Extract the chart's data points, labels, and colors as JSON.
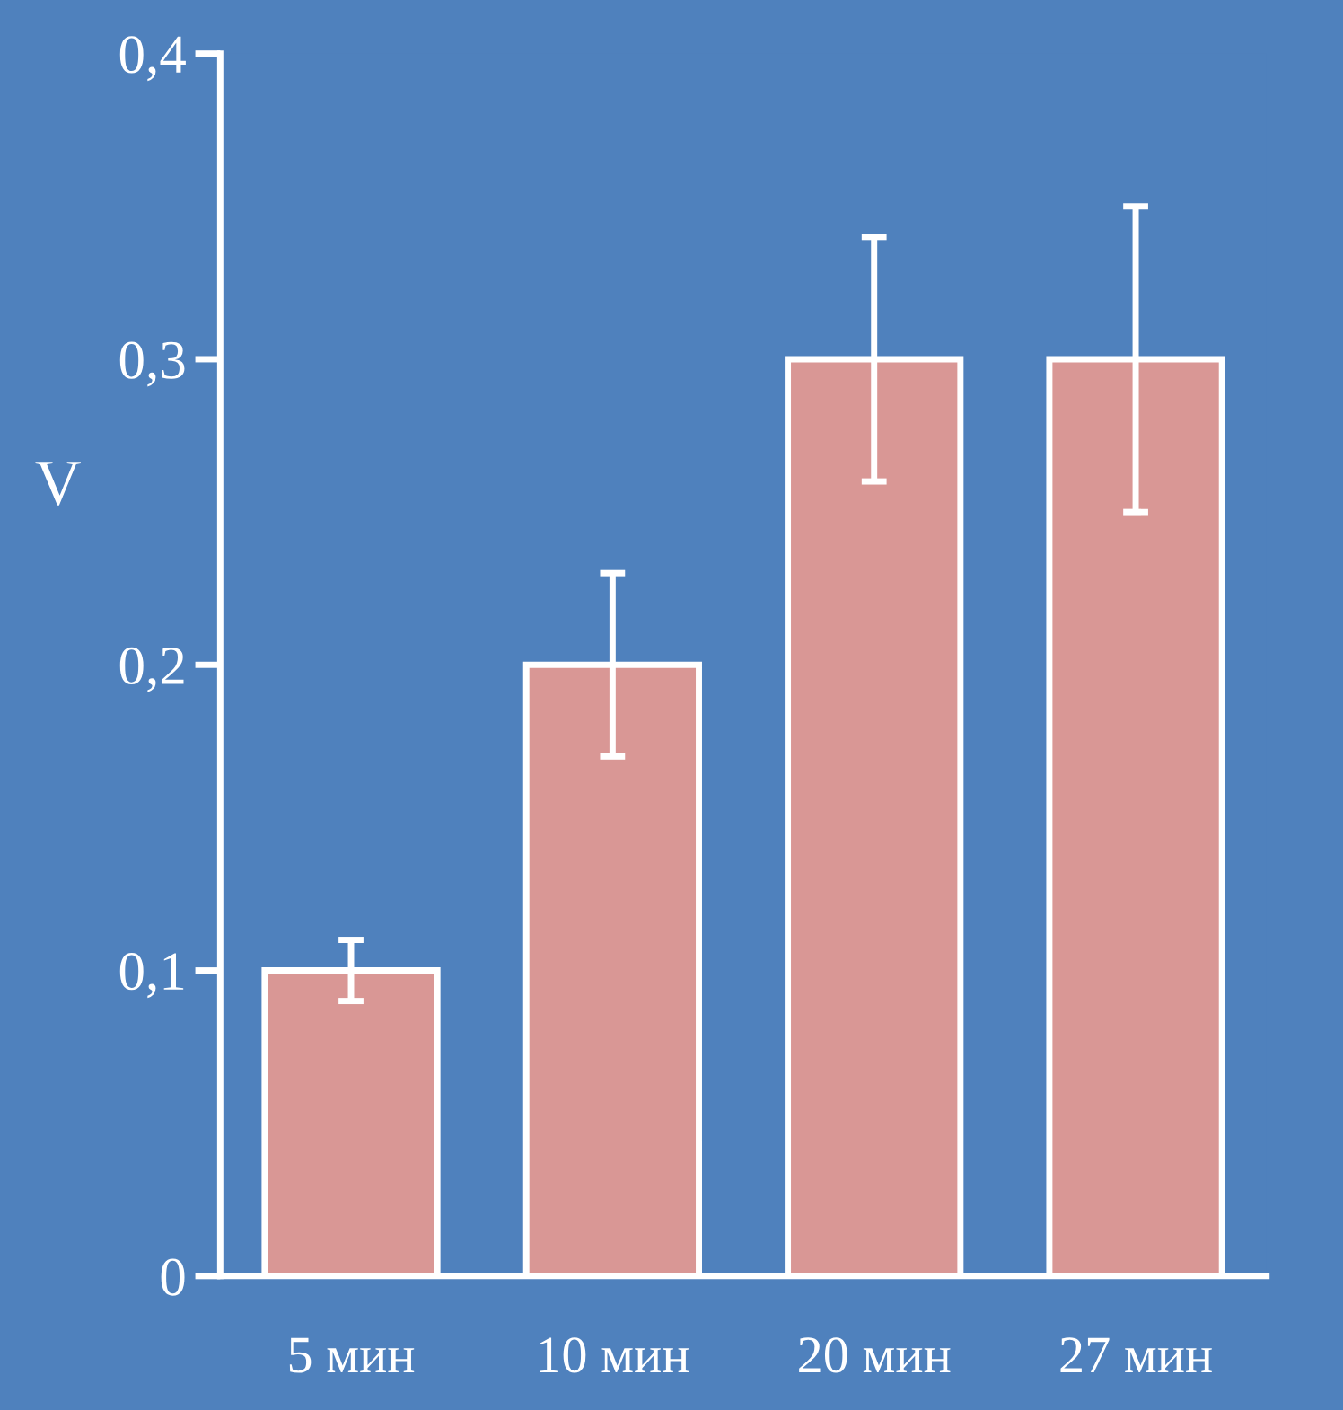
{
  "chart_data": {
    "type": "bar",
    "ylabel": "V",
    "categories": [
      "5 мин",
      "10 мин",
      "20 мин",
      "27 мин"
    ],
    "values": [
      0.1,
      0.2,
      0.3,
      0.3
    ],
    "errors": [
      0.01,
      0.03,
      0.04,
      0.05
    ],
    "color": "#d99795",
    "ylim": [
      0,
      0.4
    ],
    "yticks": [
      {
        "value": 0,
        "label": "0"
      },
      {
        "value": 0.1,
        "label": "0,1"
      },
      {
        "value": 0.2,
        "label": "0,2"
      },
      {
        "value": 0.3,
        "label": "0,3"
      },
      {
        "value": 0.4,
        "label": "0,4"
      }
    ],
    "grid": false,
    "legend": false
  }
}
